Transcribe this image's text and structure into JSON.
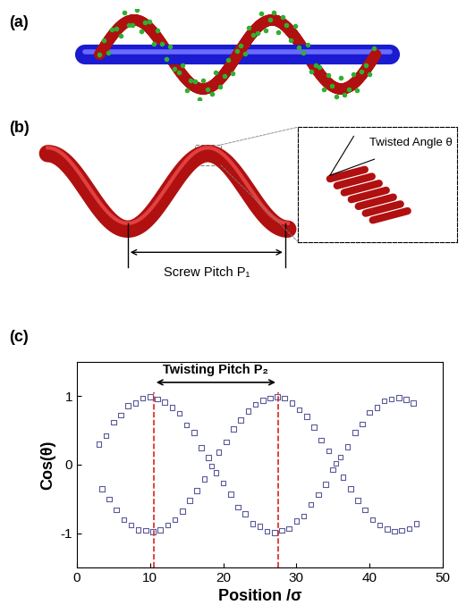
{
  "panels": [
    {
      "label": "(a)"
    },
    {
      "label": "(b)",
      "screw_pitch_label": "Screw Pitch P₁",
      "inset_label": "Twisted Angle θ"
    }
  ],
  "chart_data": {
    "type": "scatter",
    "label": "(c)",
    "x_label": "Position /σ",
    "y_label": "Cos(θ)",
    "xlim": [
      0,
      50
    ],
    "ylim": [
      -1.5,
      1.5
    ],
    "xticks": [
      0,
      10,
      20,
      30,
      40,
      50
    ],
    "yticks": [
      -1,
      0,
      1
    ],
    "grid": false,
    "tick_labels": true,
    "annotation": {
      "text": "Twisting Pitch P₂",
      "x_start": 10.5,
      "x_end": 27.5,
      "color": "#e02020",
      "line_style": "dashed"
    },
    "series": [
      {
        "name": "Cos(θ)",
        "color": "#5a5a9a",
        "marker": "square",
        "x": [
          3,
          4,
          5,
          6,
          7,
          8,
          9,
          10,
          11,
          12,
          13,
          14,
          15,
          16,
          17,
          18,
          19,
          20,
          21,
          22,
          23,
          24,
          25,
          26,
          27,
          28,
          29,
          30,
          31,
          32,
          33,
          34,
          35,
          36,
          37,
          38,
          39,
          40,
          41,
          42,
          43,
          44,
          45,
          46,
          3.4,
          4.4,
          5.4,
          6.4,
          7.4,
          8.4,
          9.4,
          10.4,
          11.4,
          12.4,
          13.4,
          14.4,
          15.4,
          16.4,
          17.4,
          18.4,
          19.4,
          20.4,
          21.4,
          22.4,
          23.4,
          24.4,
          25.4,
          26.4,
          27.4,
          28.4,
          29.4,
          30.4,
          31.4,
          32.4,
          33.4,
          34.4,
          35.4,
          36.4,
          37.4,
          38.4,
          39.4,
          40.4,
          41.4,
          42.4,
          43.4,
          44.4,
          45.4,
          46.4
        ],
        "values": [
          0.3,
          0.42,
          0.62,
          0.72,
          0.86,
          0.9,
          0.97,
          0.99,
          0.96,
          0.91,
          0.83,
          0.75,
          0.58,
          0.47,
          0.25,
          0.1,
          -0.12,
          -0.27,
          -0.43,
          -0.62,
          -0.72,
          -0.86,
          -0.9,
          -0.97,
          -0.99,
          -0.96,
          -0.93,
          -0.82,
          -0.75,
          -0.58,
          -0.44,
          -0.29,
          -0.07,
          0.11,
          0.26,
          0.47,
          0.59,
          0.76,
          0.83,
          0.93,
          0.96,
          0.98,
          0.95,
          0.9,
          -0.35,
          -0.5,
          -0.66,
          -0.8,
          -0.88,
          -0.95,
          -0.96,
          -0.98,
          -0.95,
          -0.88,
          -0.8,
          -0.68,
          -0.52,
          -0.38,
          -0.21,
          -0.02,
          0.18,
          0.33,
          0.52,
          0.65,
          0.78,
          0.88,
          0.94,
          0.97,
          0.99,
          0.97,
          0.9,
          0.8,
          0.7,
          0.55,
          0.36,
          0.2,
          0.02,
          -0.18,
          -0.35,
          -0.52,
          -0.66,
          -0.8,
          -0.88,
          -0.94,
          -0.97,
          -0.96,
          -0.93,
          -0.86
        ]
      }
    ]
  }
}
